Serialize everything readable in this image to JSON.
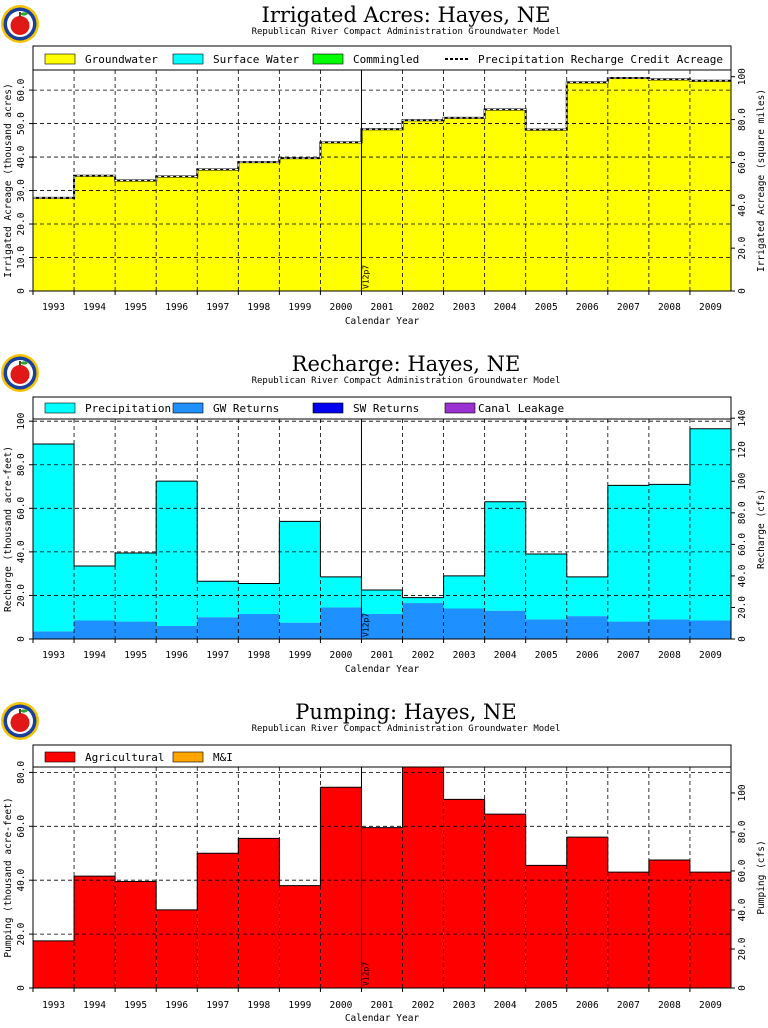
{
  "colors": {
    "groundwater": "#ffff00",
    "surface_water": "#00ffff",
    "commingled": "#00ff00",
    "precipitation": "#00ffff",
    "gw_returns": "#1e90ff",
    "sw_returns": "#0000ee",
    "canal_leakage": "#9b30d0",
    "agricultural": "#ff0000",
    "mandi": "#ffa500",
    "grid": "#000000",
    "logo_ring": "#1a3f9c",
    "logo_ring_outer": "#f5c400",
    "logo_apple": "#e01818"
  },
  "logo_icon": "apple-logo-icon",
  "annotation": "V12p7",
  "chart_data": [
    {
      "id": "irrigated",
      "type": "area",
      "title": "Irrigated Acres: Hayes, NE",
      "subtitle": "Republican River Compact Administration Groundwater Model",
      "xlabel": "Calendar Year",
      "ylabel": "Irrigated Acreage (thousand acres)",
      "y2label": "Irrigated Acreage (square miles)",
      "categories": [
        "1993",
        "1994",
        "1995",
        "1996",
        "1997",
        "1998",
        "1999",
        "2000",
        "2001",
        "2002",
        "2003",
        "2004",
        "2005",
        "2006",
        "2007",
        "2008",
        "2009"
      ],
      "ylim": [
        0,
        66
      ],
      "yticks": [
        "0",
        "10.0",
        "20.0",
        "30.0",
        "40.0",
        "50.0",
        "60.0"
      ],
      "y2lim": [
        0,
        103.125
      ],
      "y2ticks": [
        "0",
        "20.0",
        "40.0",
        "60.0",
        "80.0",
        "100"
      ],
      "legend": "top",
      "grid": true,
      "series": [
        {
          "name": "Groundwater",
          "color_key": "groundwater",
          "type": "bar",
          "values": [
            27.8,
            34.4,
            33.0,
            34.2,
            36.3,
            38.5,
            39.7,
            44.4,
            48.3,
            51.0,
            51.7,
            54.2,
            48.2,
            62.3,
            63.6,
            63.2,
            62.8
          ]
        },
        {
          "name": "Surface Water",
          "color_key": "surface_water",
          "type": "bar",
          "values": [
            0,
            0,
            0,
            0,
            0,
            0,
            0,
            0,
            0,
            0,
            0,
            0,
            0,
            0,
            0,
            0,
            0
          ]
        },
        {
          "name": "Commingled",
          "color_key": "commingled",
          "type": "bar",
          "values": [
            0,
            0,
            0,
            0,
            0,
            0,
            0,
            0,
            0,
            0,
            0,
            0,
            0,
            0,
            0,
            0,
            0
          ]
        },
        {
          "name": "Precipitation Recharge Credit Acreage",
          "type": "dashed-step",
          "values": [
            27.8,
            34.4,
            33.0,
            34.2,
            36.3,
            38.5,
            39.7,
            44.4,
            48.3,
            51.0,
            51.7,
            54.2,
            48.2,
            62.3,
            63.6,
            63.2,
            62.8
          ]
        }
      ]
    },
    {
      "id": "recharge",
      "type": "bar",
      "title": "Recharge: Hayes, NE",
      "subtitle": "Republican River Compact Administration Groundwater Model",
      "xlabel": "Calendar Year",
      "ylabel": "Recharge (thousand acre-feet)",
      "y2label": "Recharge (cfs)",
      "categories": [
        "1993",
        "1994",
        "1995",
        "1996",
        "1997",
        "1998",
        "1999",
        "2000",
        "2001",
        "2002",
        "2003",
        "2004",
        "2005",
        "2006",
        "2007",
        "2008",
        "2009"
      ],
      "ylim": [
        0,
        101
      ],
      "yticks": [
        "0",
        "20.0",
        "40.0",
        "60.0",
        "80.0",
        "100"
      ],
      "y2lim": [
        0,
        139.5
      ],
      "y2ticks": [
        "0",
        "20.0",
        "40.0",
        "60.0",
        "80.0",
        "100",
        "120",
        "140"
      ],
      "legend": "top",
      "grid": true,
      "series": [
        {
          "name": "Precipitation",
          "color_key": "precipitation",
          "values": [
            86.0,
            25.0,
            31.5,
            66.5,
            16.5,
            14.0,
            46.5,
            14.0,
            11.0,
            2.5,
            15.0,
            50.0,
            30.0,
            18.0,
            62.5,
            62.0,
            88.0
          ]
        },
        {
          "name": "GW Returns",
          "color_key": "gw_returns",
          "values": [
            3.5,
            8.5,
            8.0,
            6.0,
            10.0,
            11.5,
            7.5,
            14.5,
            11.5,
            16.5,
            14.0,
            13.0,
            9.0,
            10.5,
            8.0,
            9.0,
            8.5
          ]
        },
        {
          "name": "SW Returns",
          "color_key": "sw_returns",
          "values": [
            0,
            0,
            0,
            0,
            0,
            0,
            0,
            0,
            0,
            0,
            0,
            0,
            0,
            0,
            0,
            0,
            0
          ]
        },
        {
          "name": "Canal Leakage",
          "color_key": "canal_leakage",
          "values": [
            0,
            0,
            0,
            0,
            0,
            0,
            0,
            0,
            0,
            0,
            0,
            0,
            0,
            0,
            0,
            0,
            0
          ]
        }
      ]
    },
    {
      "id": "pumping",
      "type": "bar",
      "title": "Pumping: Hayes, NE",
      "subtitle": "Republican River Compact Administration Groundwater Model",
      "xlabel": "Calendar Year",
      "ylabel": "Pumping (thousand acre-feet)",
      "y2label": "Pumping (cfs)",
      "categories": [
        "1993",
        "1994",
        "1995",
        "1996",
        "1997",
        "1998",
        "1999",
        "2000",
        "2001",
        "2002",
        "2003",
        "2004",
        "2005",
        "2006",
        "2007",
        "2008",
        "2009"
      ],
      "ylim": [
        0,
        82
      ],
      "yticks": [
        "0",
        "20.0",
        "40.0",
        "60.0",
        "80.0"
      ],
      "y2lim": [
        0,
        113.3
      ],
      "y2ticks": [
        "0",
        "20.0",
        "40.0",
        "60.0",
        "80.0",
        "100"
      ],
      "legend": "top",
      "grid": true,
      "series": [
        {
          "name": "Agricultural",
          "color_key": "agricultural",
          "values": [
            17.5,
            41.5,
            39.5,
            29.0,
            50.0,
            55.5,
            38.0,
            74.5,
            59.5,
            82.0,
            70.0,
            64.5,
            45.5,
            56.0,
            43.0,
            47.5,
            43.0
          ]
        },
        {
          "name": "M&I",
          "color_key": "mandi",
          "values": [
            0,
            0,
            0,
            0,
            0,
            0,
            0,
            0,
            0,
            0,
            0,
            0,
            0,
            0,
            0,
            0,
            0
          ]
        }
      ]
    }
  ]
}
